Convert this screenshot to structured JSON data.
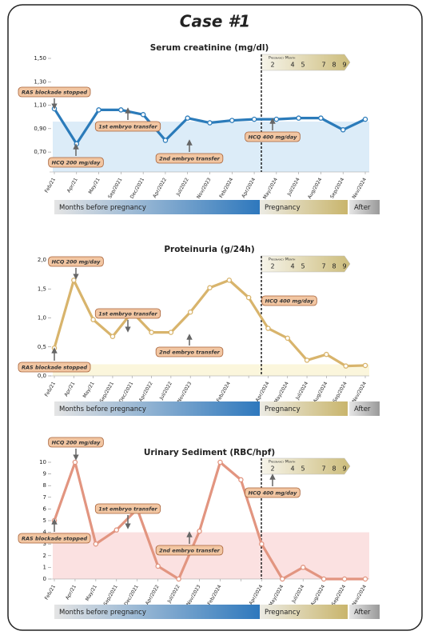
{
  "title": "Case #1",
  "periods": [
    "Months before pregnancy",
    "Pregnancy",
    "After"
  ],
  "pregnancy_month": {
    "label": "Pregnancy Month",
    "ticks": [
      2,
      4,
      5,
      7,
      8,
      9
    ]
  },
  "chart_data": [
    {
      "type": "line",
      "title": "Serum creatinine (mg/dl)",
      "color": "#2b7bba",
      "band_color": "#dcecf8",
      "categories": [
        "Feb/21",
        "Apr/21",
        "May/21",
        "Sep/2021",
        "Dec/2021",
        "Apr/2022",
        "Jul/2022",
        "Nov/2023",
        "Feb/2024",
        "Apr/2024",
        "May/2024",
        "Jul/2024",
        "Aug/2024",
        "Sep/2024",
        "Nov/2024"
      ],
      "values": [
        1.07,
        0.77,
        1.06,
        1.06,
        1.02,
        0.8,
        0.99,
        0.95,
        0.97,
        0.98,
        0.98,
        0.99,
        0.99,
        0.89,
        0.98
      ],
      "ylim": [
        0.53,
        1.5
      ],
      "band": [
        0.53,
        0.96
      ],
      "yticks": [
        {
          "value": 0.7,
          "label": "0,70"
        },
        {
          "value": 0.9,
          "label": "0,90"
        },
        {
          "value": 1.1,
          "label": "1,10"
        },
        {
          "value": 1.3,
          "label": "1,30"
        },
        {
          "value": 1.5,
          "label": "1,50"
        }
      ],
      "annotations": [
        "RAS blockade stopped",
        "HCQ 200 mg/day",
        "1st embryo transfer",
        "2nd embryo transfer",
        "HCQ 400 mg/day"
      ]
    },
    {
      "type": "line",
      "title": "Proteinuria (g/24h)",
      "color": "#d8b46c",
      "band_color": "#fbf6dc",
      "categories": [
        "Feb/21",
        "Apr/21",
        "May/21",
        "Sep/2021",
        "Dec/2021",
        "Apr/2022",
        "Jul/2022",
        "Nov/2023",
        null,
        "Feb/2024",
        null,
        "Apr/2024",
        "May/2024",
        "Jul/2024",
        "Aug/2024",
        "Sep/2024",
        "Nov/2024"
      ],
      "values": [
        0.48,
        1.65,
        0.97,
        0.68,
        1.1,
        0.75,
        0.75,
        1.1,
        1.52,
        1.65,
        1.35,
        0.82,
        0.65,
        0.27,
        0.37,
        0.17,
        0.18
      ],
      "ylim": [
        0,
        2
      ],
      "band": [
        0,
        0.2
      ],
      "yticks": [
        {
          "value": 0,
          "label": "0,0"
        },
        {
          "value": 0.5,
          "label": "0,5"
        },
        {
          "value": 1,
          "label": "1,0"
        },
        {
          "value": 1.5,
          "label": "1,5"
        },
        {
          "value": 2,
          "label": "2,0"
        }
      ],
      "annotations": [
        "HCQ 200 mg/day",
        "1st embryo transfer",
        "2nd embryo transfer",
        "RAS blockade stopped",
        "HCQ 400 mg/day"
      ]
    },
    {
      "type": "line",
      "title": "Urinary Sediment (RBC/hpf)",
      "color": "#e29580",
      "band_color": "#fbe1e1",
      "categories": [
        "Feb/21",
        "Apr/21",
        "May/21",
        "Sep/2021",
        "Dec/2021",
        "Apr/2022",
        "Jul/2022",
        "Nov/2023",
        "Feb/2024",
        null,
        "Apr/2024",
        "May/2024",
        "Jul/2024",
        "Aug/2024",
        "Sep/2024",
        "Nov/2024"
      ],
      "values": [
        5,
        10,
        3,
        4.2,
        6,
        1.1,
        0,
        4.1,
        10,
        8.5,
        3,
        0,
        1,
        0,
        0,
        0
      ],
      "ylim": [
        0,
        10
      ],
      "band": [
        0,
        4
      ],
      "yticks": [
        0,
        1,
        2,
        3,
        4,
        5,
        6,
        7,
        8,
        9,
        10
      ],
      "annotations": [
        "HCQ 200 mg/day",
        "1st embryo transfer",
        "2nd embryo transfer",
        "RAS blockade stopped",
        "HCQ 400 mg/day"
      ]
    }
  ]
}
